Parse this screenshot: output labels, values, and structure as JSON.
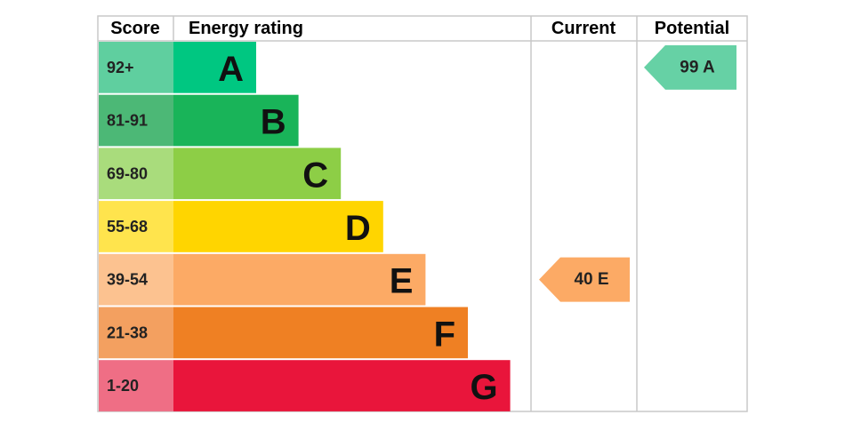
{
  "header": {
    "score": "Score",
    "rating": "Energy rating",
    "current": "Current",
    "potential": "Potential"
  },
  "bands": [
    {
      "score": "92+",
      "letter": "A",
      "color": "#00c781",
      "score_color": "#5fcf9f"
    },
    {
      "score": "81-91",
      "letter": "B",
      "color": "#19b459",
      "score_color": "#4cb876"
    },
    {
      "score": "69-80",
      "letter": "C",
      "color": "#8dce46",
      "score_color": "#a9dc7c"
    },
    {
      "score": "55-68",
      "letter": "D",
      "color": "#ffd500",
      "score_color": "#ffe44d"
    },
    {
      "score": "39-54",
      "letter": "E",
      "color": "#fcaa65",
      "score_color": "#fcc290"
    },
    {
      "score": "21-38",
      "letter": "F",
      "color": "#ef8023",
      "score_color": "#f3a060"
    },
    {
      "score": "1-20",
      "letter": "G",
      "color": "#e9153b",
      "score_color": "#ef6e85"
    }
  ],
  "current": {
    "label": "40 E",
    "color": "#fcaa65"
  },
  "potential": {
    "label": "99 A",
    "color": "#66d1a5"
  }
}
